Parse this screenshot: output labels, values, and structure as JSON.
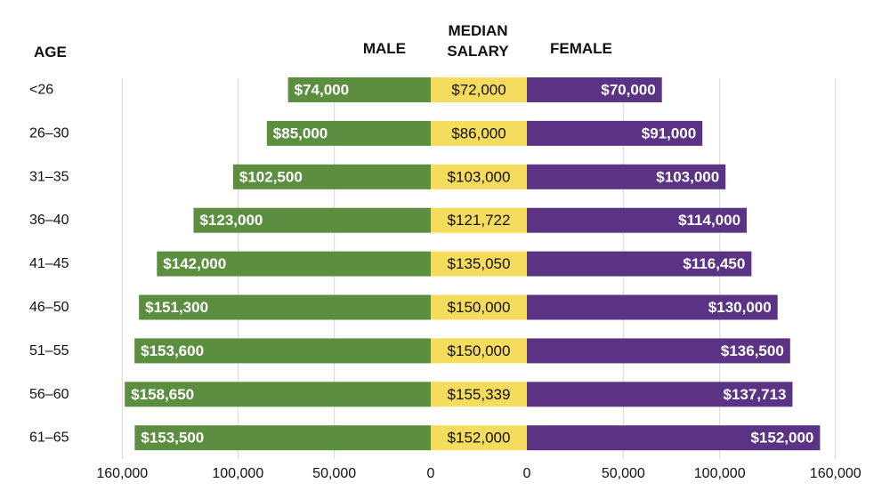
{
  "chart_data": {
    "type": "bar",
    "subtype": "diverging-horizontal",
    "headers": {
      "age": "AGE",
      "male": "MALE",
      "median_line1": "MEDIAN",
      "median_line2": "SALARY",
      "female": "FEMALE"
    },
    "categories": [
      "<26",
      "26–30",
      "31–35",
      "36–40",
      "41–45",
      "46–50",
      "51–55",
      "56–60",
      "61–65"
    ],
    "series": [
      {
        "name": "Male",
        "color": "#5b8f3f",
        "values": [
          74000,
          85000,
          102500,
          123000,
          142000,
          151300,
          153600,
          158650,
          153500
        ],
        "labels": [
          "$74,000",
          "$85,000",
          "$102,500",
          "$123,000",
          "$142,000",
          "$151,300",
          "$153,600",
          "$158,650",
          "$153,500"
        ]
      },
      {
        "name": "Median Salary",
        "color": "#f6dc5c",
        "values": [
          72000,
          86000,
          103000,
          121722,
          135050,
          150000,
          150000,
          155339,
          152000
        ],
        "labels": [
          "$72,000",
          "$86,000",
          "$103,000",
          "$121,722",
          "$135,050",
          "$150,000",
          "$150,000",
          "$155,339",
          "$152,000"
        ]
      },
      {
        "name": "Female",
        "color": "#5a3384",
        "values": [
          70000,
          91000,
          103000,
          114000,
          116450,
          130000,
          136500,
          137713,
          152000
        ],
        "labels": [
          "$70,000",
          "$91,000",
          "$103,000",
          "$114,000",
          "$116,450",
          "$130,000",
          "$136,500",
          "$137,713",
          "$152,000"
        ]
      }
    ],
    "xlim": [
      0,
      160000
    ],
    "male_ticks": [
      {
        "value": 160000,
        "label": "160,000"
      },
      {
        "value": 100000,
        "label": "100,000"
      },
      {
        "value": 50000,
        "label": "50,000"
      },
      {
        "value": 0,
        "label": "0"
      }
    ],
    "female_ticks": [
      {
        "value": 0,
        "label": "0"
      },
      {
        "value": 50000,
        "label": "50,000"
      },
      {
        "value": 100000,
        "label": "100,000"
      },
      {
        "value": 160000,
        "label": "160,000"
      }
    ],
    "grid": true
  }
}
